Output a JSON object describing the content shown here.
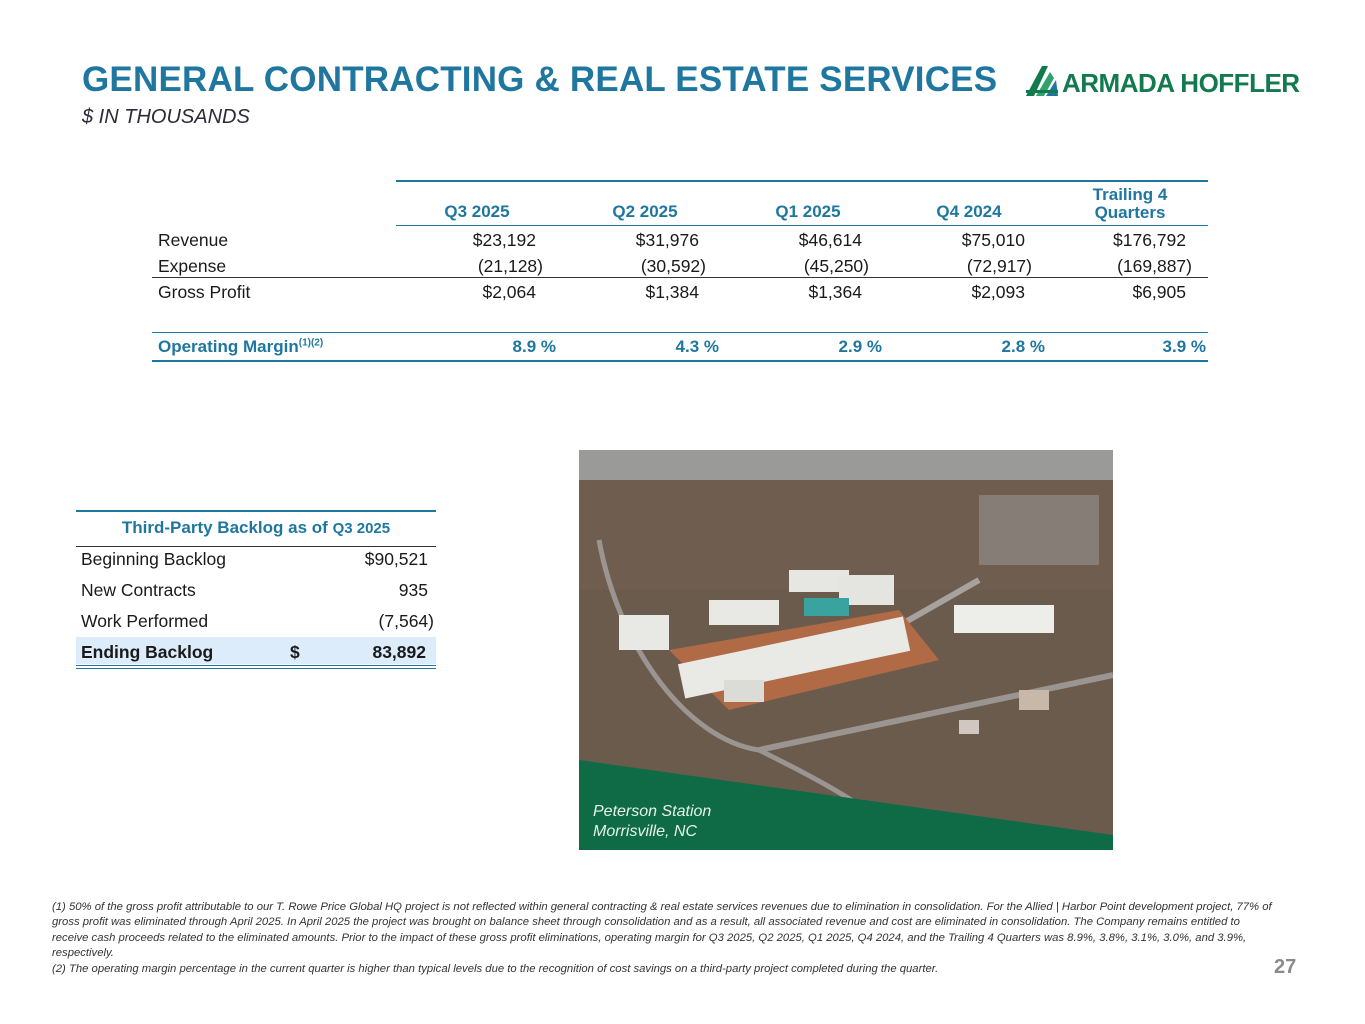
{
  "header": {
    "title": "GENERAL CONTRACTING & REAL ESTATE SERVICES",
    "subtitle": "$ IN THOUSANDS",
    "logo_text": "ARMADA HOFFLER"
  },
  "financials": {
    "columns": [
      "Q3 2025",
      "Q2 2025",
      "Q1 2025",
      "Q4 2024",
      "Trailing 4",
      "Quarters"
    ],
    "rows": [
      {
        "label": "Revenue",
        "values": [
          "$23,192",
          "$31,976",
          "$46,614",
          "$75,010",
          "$176,792"
        ]
      },
      {
        "label": "Expense",
        "values": [
          "(21,128)",
          "(30,592)",
          "(45,250)",
          "(72,917)",
          "(169,887)"
        ]
      },
      {
        "label": "Gross Profit",
        "values": [
          "$2,064",
          "$1,384",
          "$1,364",
          "$2,093",
          "$6,905"
        ]
      }
    ],
    "margin": {
      "label": "Operating Margin",
      "sup": "(1)(2)",
      "values": [
        "8.9 %",
        "4.3 %",
        "2.9 %",
        "2.8 %",
        "3.9 %"
      ]
    }
  },
  "backlog": {
    "title": "Third-Party Backlog as of",
    "quarter": "Q3 2025",
    "rows": [
      {
        "label": "Beginning Backlog",
        "value": "$90,521"
      },
      {
        "label": "New Contracts",
        "value": "935"
      },
      {
        "label": "Work Performed",
        "value": "(7,564)"
      }
    ],
    "ending": {
      "label": "Ending Backlog",
      "currency": "$",
      "value": "83,892"
    }
  },
  "photo": {
    "caption_line1": "Peterson Station",
    "caption_line2": "Morrisville, NC",
    "band_color": "#0e6b45"
  },
  "footnotes": {
    "note1": "(1)   50% of the gross profit attributable to our T. Rowe Price Global HQ project is not reflected within general contracting & real estate services revenues due to elimination in consolidation. For the Allied | Harbor Point development project, 77% of gross profit was eliminated through April 2025. In April 2025 the project was brought on balance sheet through consolidation and as a result, all associated revenue and cost are  eliminated in consolidation. The Company remains entitled to receive cash proceeds related to the eliminated amounts. Prior to the impact of these gross profit eliminations, operating margin for Q3 2025, Q2 2025, Q1 2025, Q4 2024, and the Trailing 4 Quarters was 8.9%, 3.8%, 3.1%, 3.0%, and 3.9%, respectively.",
    "note2": "(2) The operating margin percentage in the current quarter is higher than typical levels due to the recognition of cost savings on a third-party project completed during the quarter."
  },
  "page_number": "27",
  "colors": {
    "title_blue": "#1f77a0",
    "brand_green": "#137a4e",
    "highlight": "#dcecfa"
  }
}
